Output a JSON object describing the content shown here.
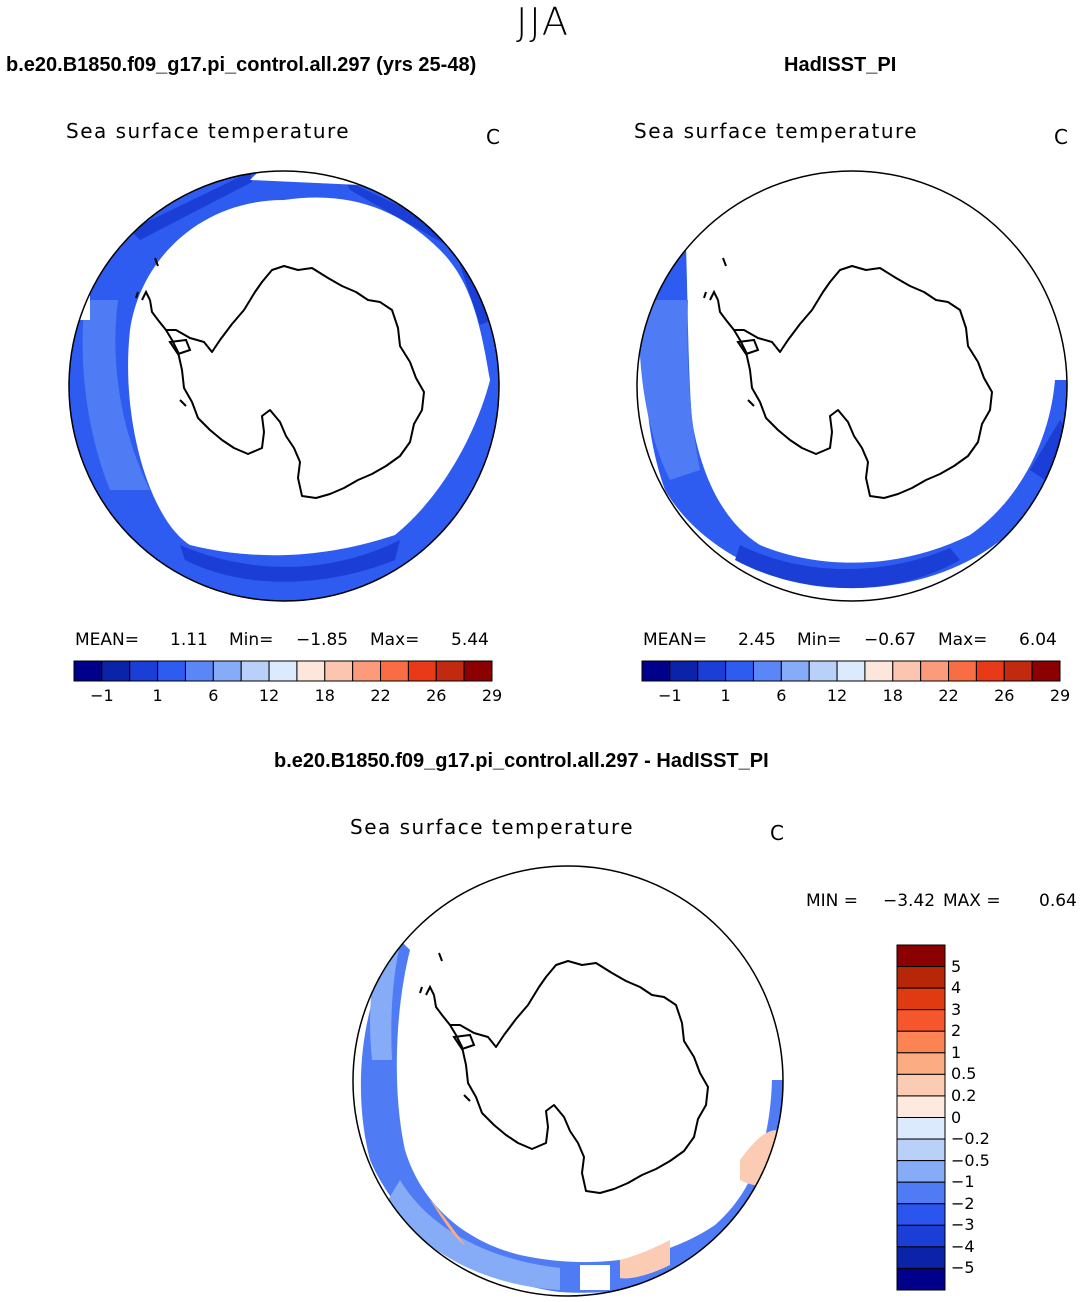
{
  "season": "JJA",
  "panels": [
    {
      "title": "b.e20.B1850.f09_g17.pi_control.all.297 (yrs 25-48)",
      "variable": "Sea surface temperature",
      "units": "C",
      "stats": {
        "mean_label": "MEAN=",
        "mean": "1.11",
        "min_label": "Min=",
        "min": "−1.85",
        "max_label": "Max=",
        "max": "5.44"
      }
    },
    {
      "title": "HadISST_PI",
      "variable": "Sea surface temperature",
      "units": "C",
      "stats": {
        "mean_label": "MEAN=",
        "mean": "2.45",
        "min_label": "Min=",
        "min": "−0.67",
        "max_label": "Max=",
        "max": "6.04"
      }
    }
  ],
  "diff_panel": {
    "title": "b.e20.B1850.f09_g17.pi_control.all.297 - HadISST_PI",
    "variable": "Sea surface temperature",
    "units": "C",
    "stats": {
      "min_label": "MIN =",
      "min": "−3.42",
      "max_label": "MAX =",
      "max": "0.64"
    }
  },
  "colorbar_abs": {
    "colors": [
      "#00008b",
      "#0a23a8",
      "#1a3ed6",
      "#2e5bf0",
      "#5a86f7",
      "#87acf7",
      "#b9d0f9",
      "#dbeafc",
      "#fde7dc",
      "#fcc5b0",
      "#fb9b7b",
      "#f96d45",
      "#e83a18",
      "#c22a10",
      "#8b0000"
    ],
    "ticks": [
      "−1",
      "1",
      "6",
      "12",
      "18",
      "22",
      "26",
      "29"
    ]
  },
  "colorbar_diff": {
    "colors": [
      "#8b0000",
      "#b8260a",
      "#e03a12",
      "#f5562c",
      "#fb8452",
      "#fbac82",
      "#fccbb4",
      "#fde9dd",
      "#dbeafc",
      "#b9d0f9",
      "#87acf7",
      "#4f7cf4",
      "#2a55ee",
      "#1a3ed6",
      "#0a23a8",
      "#00008b"
    ],
    "ticks": [
      "5",
      "4",
      "3",
      "2",
      "1",
      "0.5",
      "0.2",
      "0",
      "−0.2",
      "−0.5",
      "−1",
      "−2",
      "−3",
      "−4",
      "−5"
    ]
  }
}
